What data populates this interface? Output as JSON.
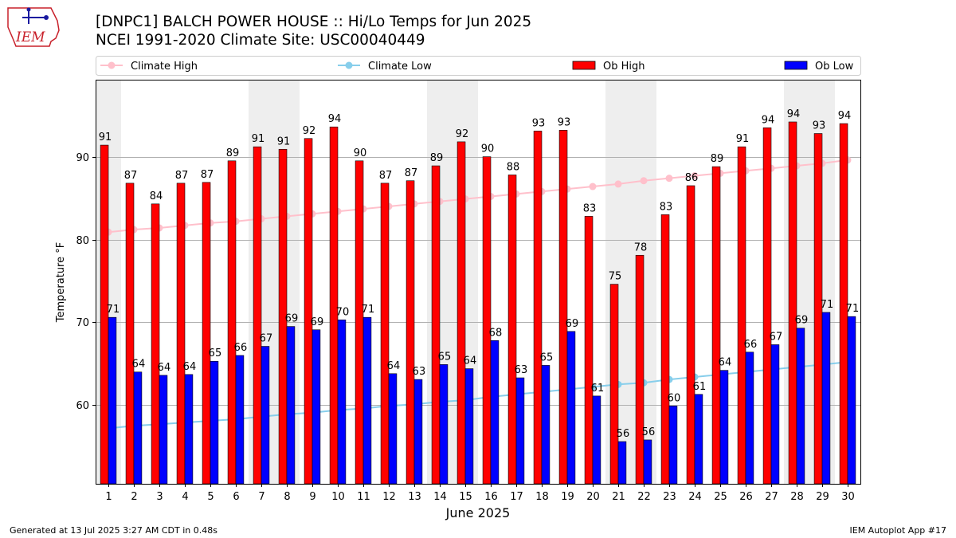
{
  "header": {
    "title_line1": "[DNPC1] BALCH POWER HOUSE :: Hi/Lo Temps for Jun 2025",
    "title_line2": "NCEI 1991-2020 Climate Site: USC00040449",
    "logo_text": "IEM"
  },
  "footer": {
    "generated": "Generated at 13 Jul 2025 3:27 AM CDT in 0.48s",
    "app": "IEM Autoplot App #17"
  },
  "colors": {
    "ob_high": "#ff0000",
    "ob_low": "#0000ff",
    "climate_high": "#ffc0cb",
    "climate_low": "#87ceeb",
    "weekend_shade": "#eeeeee",
    "grid": "#b0b0b0"
  },
  "chart_data": {
    "type": "bar",
    "title": "[DNPC1] BALCH POWER HOUSE :: Hi/Lo Temps for Jun 2025",
    "xlabel": "June 2025",
    "ylabel": "Temperature °F",
    "ylim": [
      50.5,
      99.3
    ],
    "yticks": [
      60,
      70,
      80,
      90
    ],
    "grid": "horizontal",
    "legend_position": "top",
    "categories": [
      "1",
      "2",
      "3",
      "4",
      "5",
      "6",
      "7",
      "8",
      "9",
      "10",
      "11",
      "12",
      "13",
      "14",
      "15",
      "16",
      "17",
      "18",
      "19",
      "20",
      "21",
      "22",
      "23",
      "24",
      "25",
      "26",
      "27",
      "28",
      "29",
      "30"
    ],
    "shaded_days": [
      1,
      7,
      8,
      14,
      15,
      21,
      22,
      28,
      29
    ],
    "series": [
      {
        "name": "Ob High",
        "kind": "bar",
        "values": [
          91,
          87,
          84,
          87,
          87,
          89,
          91,
          91,
          92,
          94,
          90,
          87,
          87,
          89,
          92,
          90,
          88,
          93,
          93,
          83,
          75,
          78,
          83,
          86,
          89,
          91,
          94,
          94,
          93,
          94
        ],
        "plotted": [
          91.4,
          86.8,
          84.3,
          86.8,
          86.9,
          89.5,
          91.2,
          90.9,
          92.2,
          93.6,
          89.5,
          86.8,
          87.1,
          88.9,
          91.8,
          90.0,
          87.8,
          93.1,
          93.2,
          82.8,
          74.6,
          78.1,
          83.0,
          86.5,
          88.8,
          91.2,
          93.5,
          94.2,
          92.8,
          94.0
        ]
      },
      {
        "name": "Ob Low",
        "kind": "bar",
        "values": [
          71,
          64,
          64,
          64,
          65,
          66,
          67,
          69,
          69,
          70,
          71,
          64,
          63,
          65,
          64,
          68,
          63,
          65,
          69,
          61,
          56,
          56,
          60,
          61,
          64,
          66,
          67,
          69,
          71,
          71
        ],
        "plotted": [
          70.6,
          64.0,
          63.6,
          63.7,
          65.3,
          66.0,
          67.1,
          69.5,
          69.1,
          70.3,
          70.6,
          63.8,
          63.1,
          64.9,
          64.4,
          67.8,
          63.3,
          64.8,
          68.9,
          61.1,
          55.6,
          55.8,
          59.9,
          61.3,
          64.2,
          66.4,
          67.3,
          69.3,
          71.2,
          70.7
        ]
      },
      {
        "name": "Climate High",
        "kind": "line",
        "values": [
          80.9,
          81.2,
          81.4,
          81.7,
          82.0,
          82.2,
          82.5,
          82.8,
          83.1,
          83.4,
          83.7,
          84.0,
          84.3,
          84.6,
          84.9,
          85.2,
          85.5,
          85.8,
          86.1,
          86.4,
          86.7,
          87.1,
          87.4,
          87.7,
          88.0,
          88.3,
          88.6,
          88.9,
          89.2,
          89.6
        ]
      },
      {
        "name": "Climate Low",
        "kind": "line",
        "values": [
          57.2,
          57.5,
          57.7,
          57.9,
          58.1,
          58.3,
          58.6,
          58.9,
          59.1,
          59.4,
          59.6,
          59.9,
          60.1,
          60.4,
          60.6,
          61.0,
          61.3,
          61.6,
          61.9,
          62.2,
          62.5,
          62.7,
          63.1,
          63.4,
          63.7,
          64.0,
          64.3,
          64.6,
          64.9,
          65.2
        ]
      }
    ]
  }
}
